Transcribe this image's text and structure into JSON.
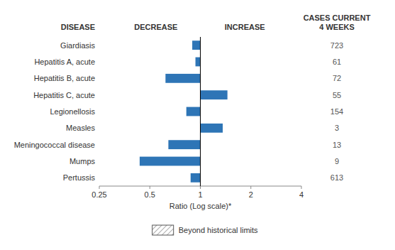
{
  "chart_data": {
    "type": "bar",
    "orientation": "horizontal",
    "log": "x",
    "categories": [
      "Giardiasis",
      "Hepatitis A, acute",
      "Hepatitis B, acute",
      "Hepatitis C, acute",
      "Legionellosis",
      "Measles",
      "Meningococcal disease",
      "Mumps",
      "Pertussis"
    ],
    "values": [
      0.895,
      0.935,
      0.62,
      1.45,
      0.825,
      1.36,
      0.645,
      0.435,
      0.875
    ],
    "cases": [
      723,
      61,
      72,
      55,
      154,
      3,
      13,
      9,
      613
    ],
    "color": "#2e75b6",
    "xlim": [
      0.25,
      4
    ],
    "xticks": [
      0.25,
      0.5,
      1,
      2,
      4
    ],
    "x_label": "Ratio (Log scale)*",
    "headers": {
      "disease": "DISEASE",
      "decrease": "DECREASE",
      "increase": "INCREASE",
      "cases": [
        "CASES CURRENT",
        "4 WEEKS"
      ]
    },
    "legend_note": "Beyond historical limits",
    "grid": false
  }
}
